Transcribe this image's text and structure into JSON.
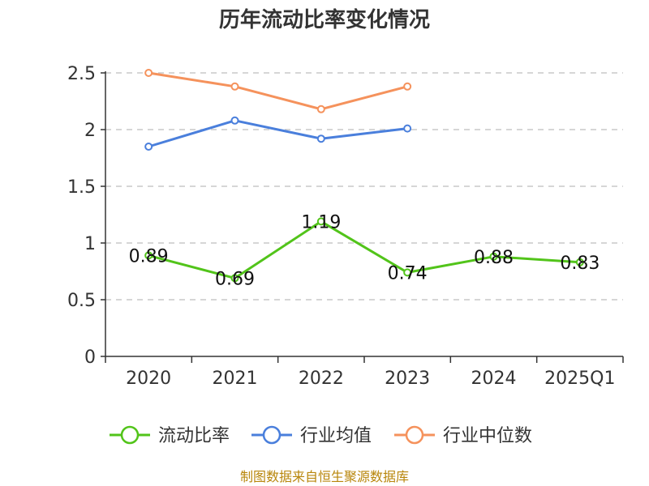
{
  "chart_data": {
    "type": "line",
    "title": "历年流动比率变化情况",
    "categories": [
      "2020",
      "2021",
      "2022",
      "2023",
      "2024",
      "2025Q1"
    ],
    "ylim": [
      0,
      2.5
    ],
    "yticks": [
      "0",
      "0.5",
      "1",
      "1.5",
      "2",
      "2.5"
    ],
    "grid": true,
    "legend_position": "bottom",
    "series": [
      {
        "name": "流动比率",
        "color": "#52c41a",
        "values": [
          0.89,
          0.69,
          1.19,
          0.74,
          0.88,
          0.83
        ],
        "labels": [
          "0.89",
          "0.69",
          "1.19",
          "0.74",
          "0.88",
          "0.83"
        ]
      },
      {
        "name": "行业均值",
        "color": "#4a7fdc",
        "values": [
          1.85,
          2.08,
          1.92,
          2.01,
          null,
          null
        ]
      },
      {
        "name": "行业中位数",
        "color": "#f5925c",
        "values": [
          2.5,
          2.38,
          2.18,
          2.38,
          null,
          null
        ]
      }
    ]
  },
  "footer": "制图数据来自恒生聚源数据库"
}
